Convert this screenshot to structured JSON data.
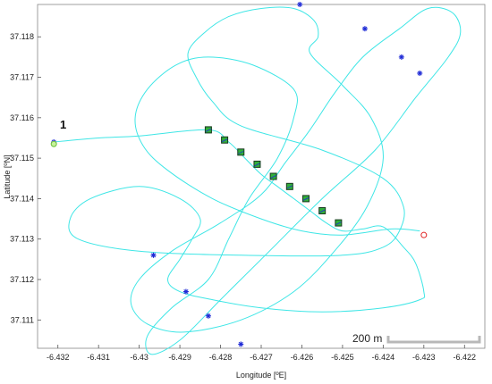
{
  "chart_data": {
    "type": "line",
    "title": "",
    "xlabel": "Longitude [ºE]",
    "ylabel": "Latitude [ºN]",
    "xlim": [
      -6.4325,
      -6.4215
    ],
    "ylim": [
      37.1103,
      37.1188
    ],
    "xticks": [
      "-6.432",
      "-6.431",
      "-6.43",
      "-6.429",
      "-6.428",
      "-6.427",
      "-6.426",
      "-6.425",
      "-6.424",
      "-6.423",
      "-6.422"
    ],
    "yticks": [
      "37.111",
      "37.112",
      "37.113",
      "37.114",
      "37.115",
      "37.116",
      "37.117",
      "37.118"
    ],
    "grid": false,
    "annotation": "1",
    "scale_bar": {
      "label": "200 m"
    },
    "track_color": "#3fe6e6",
    "series": [
      {
        "role": "track",
        "x": [
          -6.4321,
          -6.431,
          -6.43,
          -6.4283,
          -6.4278,
          -6.4274,
          -6.427,
          -6.4266,
          -6.4262,
          -6.4258,
          -6.4254,
          -6.425,
          -6.4245,
          -6.424,
          -6.4235,
          -6.4232,
          -6.423,
          -6.4231,
          -6.424,
          -6.4255,
          -6.427,
          -6.4282,
          -6.429,
          -6.4293,
          -6.429,
          -6.4287,
          -6.4285,
          -6.429,
          -6.43,
          -6.4312,
          -6.4317,
          -6.4315,
          -6.43,
          -6.4275,
          -6.425,
          -6.424,
          -6.4236,
          -6.4235,
          -6.424,
          -6.4255,
          -6.4275,
          -6.4282,
          -6.4286,
          -6.4288,
          -6.4284,
          -6.4278,
          -6.427,
          -6.4262,
          -6.4257,
          -6.4256,
          -6.4258,
          -6.425,
          -6.4243,
          -6.424,
          -6.4244,
          -6.4252,
          -6.4262,
          -6.4275,
          -6.4289,
          -6.4298,
          -6.4302,
          -6.43,
          -6.4292,
          -6.428,
          -6.427,
          -6.4264,
          -6.4258,
          -6.4252,
          -6.4245,
          -6.4236,
          -6.4229,
          -6.4223,
          -6.4221,
          -6.4224,
          -6.4232,
          -6.4242,
          -6.4255,
          -6.4268,
          -6.428,
          -6.429,
          -6.4297,
          -6.4298,
          -6.4292,
          -6.4283,
          -6.4278,
          -6.4273,
          -6.4266,
          -6.4262,
          -6.4262,
          -6.4272,
          -6.4283,
          -6.4291,
          -6.4298,
          -6.4301,
          -6.4299,
          -6.4293,
          -6.4282,
          -6.427,
          -6.426,
          -6.425,
          -6.4238,
          -6.4231
        ],
        "y": [
          37.1154,
          37.1155,
          37.11555,
          37.1157,
          37.1154,
          37.115,
          37.1146,
          37.1143,
          37.114,
          37.1137,
          37.1134,
          37.1132,
          37.11325,
          37.1133,
          37.1128,
          37.1124,
          37.1117,
          37.1115,
          37.1113,
          37.1112,
          37.1113,
          37.1115,
          37.1117,
          37.112,
          37.1125,
          37.113,
          37.1135,
          37.114,
          37.1143,
          37.114,
          37.1135,
          37.113,
          37.1127,
          37.1126,
          37.1126,
          37.1128,
          37.1132,
          37.1138,
          37.1145,
          37.1152,
          37.1158,
          37.1164,
          37.117,
          37.1176,
          37.1181,
          37.1185,
          37.1187,
          37.1187,
          37.1184,
          37.118,
          37.1176,
          37.1168,
          37.116,
          37.115,
          37.1138,
          37.1127,
          37.1117,
          37.111,
          37.1107,
          37.1109,
          37.1114,
          37.112,
          37.1127,
          37.1134,
          37.1141,
          37.1149,
          37.1157,
          37.1166,
          37.1175,
          37.1182,
          37.1187,
          37.1186,
          37.1181,
          37.1175,
          37.1165,
          37.1152,
          37.114,
          37.1127,
          37.1115,
          37.1105,
          37.11015,
          37.1106,
          37.1113,
          37.112,
          37.113,
          37.114,
          37.115,
          37.116,
          37.1167,
          37.1173,
          37.1175,
          37.1173,
          37.1167,
          37.116,
          37.1153,
          37.1147,
          37.114,
          37.1135,
          37.1132,
          37.1131,
          37.11325,
          37.1132
        ]
      },
      {
        "role": "waypoints",
        "x": [
          -6.4321,
          -6.42605,
          -6.42445,
          -6.42355,
          -6.4231,
          -6.42965,
          -6.42885,
          -6.4283,
          -6.4275
        ],
        "y": [
          37.1154,
          37.1188,
          37.1182,
          37.1175,
          37.1171,
          37.1126,
          37.1117,
          37.1111,
          37.1104
        ]
      },
      {
        "role": "markers",
        "x": [
          -6.4283,
          -6.4279,
          -6.4275,
          -6.4271,
          -6.4267,
          -6.4263,
          -6.4259,
          -6.4255,
          -6.4251
        ],
        "y": [
          37.1157,
          37.11545,
          37.11515,
          37.11485,
          37.11455,
          37.1143,
          37.114,
          37.1137,
          37.1134
        ]
      },
      {
        "role": "start",
        "x": [
          -6.4321
        ],
        "y": [
          37.11535
        ]
      },
      {
        "role": "end",
        "x": [
          -6.423
        ],
        "y": [
          37.1131
        ]
      }
    ]
  }
}
